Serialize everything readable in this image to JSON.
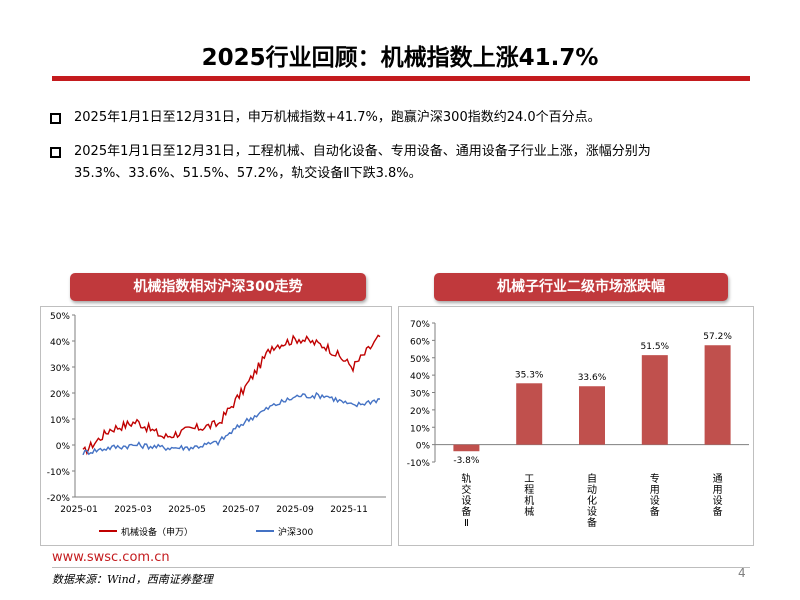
{
  "header": {
    "title": "2025行业回顾：机械指数上涨41.7%"
  },
  "bullets": [
    {
      "text": "2025年1月1日至12月31日，申万机械指数+41.7%，跑赢沪深300指数约24.0个百分点。"
    },
    {
      "line1": "2025年1月1日至12月31日，工程机械、自动化设备、专用设备、通用设备子行业上涨，涨幅分别为",
      "line2": "35.3%、33.6%、51.5%、57.2%，轨交设备Ⅱ下跌3.8%。"
    }
  ],
  "left_chart_title": "机械指数相对沪深300走势",
  "right_chart_title": "机械子行业二级市场涨跌幅",
  "colors": {
    "brand_red": "#c41b1e",
    "machinery": "#c00000",
    "csi300": "#4472c4",
    "bar": "#c0504d"
  },
  "chart_data": [
    {
      "type": "line",
      "title": "机械指数相对沪深300走势",
      "x": [
        "2025-01",
        "2025-02",
        "2025-03",
        "2025-04",
        "2025-05",
        "2025-06",
        "2025-07",
        "2025-08",
        "2025-09",
        "2025-10",
        "2025-11",
        "2025-12"
      ],
      "x_ticks": [
        "2025-01",
        "2025-03",
        "2025-05",
        "2025-07",
        "2025-09",
        "2025-11"
      ],
      "ylim": [
        -20,
        50
      ],
      "y_ticks": [
        "50%",
        "40%",
        "30%",
        "20%",
        "10%",
        "0%",
        "-10%",
        "-20%"
      ],
      "series": [
        {
          "name": "机械设备（申万）",
          "color": "#c00000",
          "values": [
            -3,
            6,
            9,
            3,
            6,
            8,
            22,
            38,
            41,
            38,
            30,
            41.7
          ]
        },
        {
          "name": "沪深300",
          "color": "#4472c4",
          "values": [
            -3,
            -1,
            0,
            -1,
            -1,
            1,
            9,
            15,
            19,
            19,
            15,
            17.7
          ]
        }
      ]
    },
    {
      "type": "bar",
      "title": "机械子行业二级市场涨跌幅",
      "categories": [
        "轨交设备Ⅱ",
        "工程机械",
        "自动化设备",
        "专用设备",
        "通用设备"
      ],
      "values": [
        -3.8,
        35.3,
        33.6,
        51.5,
        57.2
      ],
      "labels": [
        "-3.8%",
        "35.3%",
        "33.6%",
        "51.5%",
        "57.2%"
      ],
      "ylim": [
        -10,
        70
      ],
      "y_ticks": [
        "70%",
        "60%",
        "50%",
        "40%",
        "30%",
        "20%",
        "10%",
        "0%",
        "-10%"
      ]
    }
  ],
  "footer": {
    "url": "www.swsc.com.cn",
    "source": "数据来源：Wind，西南证券整理",
    "page": "4"
  }
}
